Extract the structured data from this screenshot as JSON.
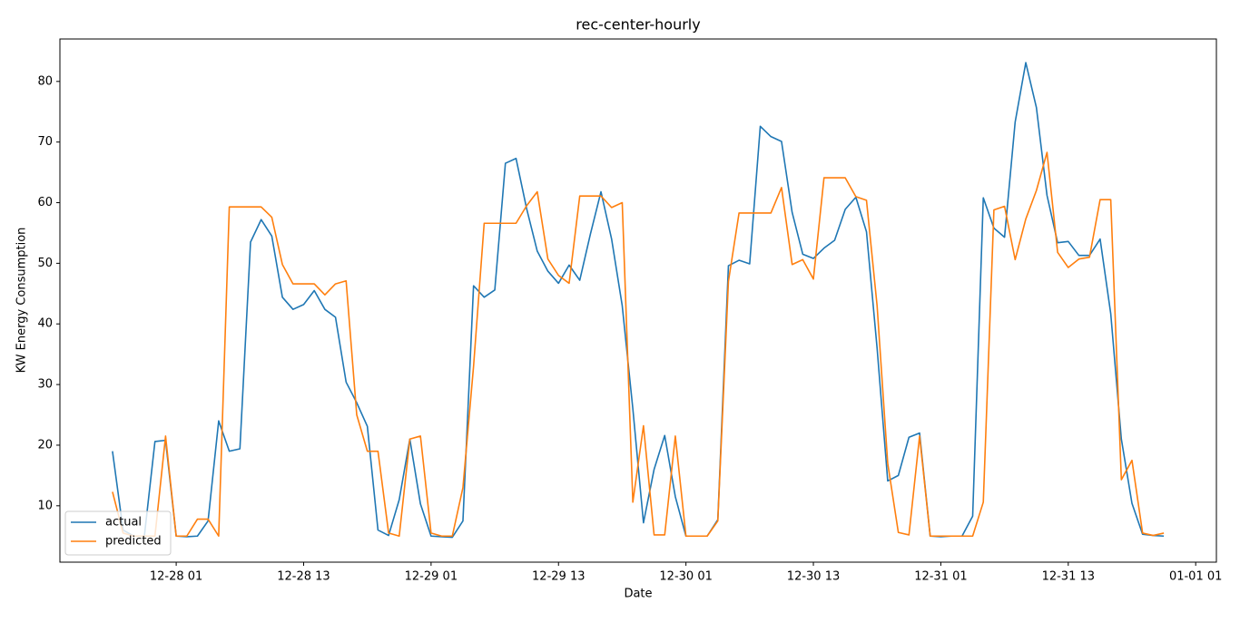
{
  "chart_data": {
    "type": "line",
    "title": "rec-center-hourly",
    "xlabel": "Date",
    "ylabel": "KW Energy Consumption",
    "x": [
      "12-27 19",
      "12-27 20",
      "12-27 21",
      "12-27 22",
      "12-27 23",
      "12-28 00",
      "12-28 01",
      "12-28 02",
      "12-28 03",
      "12-28 04",
      "12-28 05",
      "12-28 06",
      "12-28 07",
      "12-28 08",
      "12-28 09",
      "12-28 10",
      "12-28 11",
      "12-28 12",
      "12-28 13",
      "12-28 14",
      "12-28 15",
      "12-28 16",
      "12-28 17",
      "12-28 18",
      "12-28 19",
      "12-28 20",
      "12-28 21",
      "12-28 22",
      "12-28 23",
      "12-29 00",
      "12-29 01",
      "12-29 02",
      "12-29 03",
      "12-29 04",
      "12-29 05",
      "12-29 06",
      "12-29 07",
      "12-29 08",
      "12-29 09",
      "12-29 10",
      "12-29 11",
      "12-29 12",
      "12-29 13",
      "12-29 14",
      "12-29 15",
      "12-29 16",
      "12-29 17",
      "12-29 18",
      "12-29 19",
      "12-29 20",
      "12-29 21",
      "12-29 22",
      "12-29 23",
      "12-30 00",
      "12-30 01",
      "12-30 02",
      "12-30 03",
      "12-30 04",
      "12-30 05",
      "12-30 06",
      "12-30 07",
      "12-30 08",
      "12-30 09",
      "12-30 10",
      "12-30 11",
      "12-30 12",
      "12-30 13",
      "12-30 14",
      "12-30 15",
      "12-30 16",
      "12-30 17",
      "12-30 18",
      "12-30 19",
      "12-30 20",
      "12-30 21",
      "12-30 22",
      "12-30 23",
      "12-31 00",
      "12-31 01",
      "12-31 02",
      "12-31 03",
      "12-31 04",
      "12-31 05",
      "12-31 06",
      "12-31 07",
      "12-31 08",
      "12-31 09",
      "12-31 10",
      "12-31 11",
      "12-31 12",
      "12-31 13",
      "12-31 14",
      "12-31 15",
      "12-31 16",
      "12-31 17",
      "12-31 18",
      "12-31 19",
      "12-31 20",
      "12-31 21",
      "12-31 22"
    ],
    "series": [
      {
        "name": "actual",
        "color": "#1f77b4",
        "values": [
          19,
          6,
          5,
          5,
          20.6,
          20.8,
          5,
          4.9,
          5,
          7.5,
          24,
          19,
          19.4,
          53.5,
          57.2,
          54.5,
          44.4,
          42.4,
          43.2,
          45.5,
          42.4,
          41.1,
          30.4,
          27,
          23.1,
          6,
          5.1,
          11,
          21,
          10.3,
          5,
          4.9,
          4.8,
          7.5,
          46.3,
          44.4,
          45.6,
          66.5,
          67.3,
          59,
          52,
          48.7,
          46.7,
          49.7,
          47.2,
          54.8,
          61.8,
          54,
          43,
          26,
          7.2,
          16,
          21.6,
          11.5,
          5,
          5,
          5,
          7.7,
          49.6,
          50.5,
          49.9,
          72.6,
          70.9,
          70.1,
          58.4,
          51.5,
          50.8,
          52.5,
          53.8,
          58.9,
          60.9,
          55.2,
          36,
          14.1,
          15,
          21.3,
          22,
          5,
          4.9,
          5,
          5,
          8.3,
          60.8,
          55.8,
          54.3,
          73.3,
          83.1,
          75.7,
          61.2,
          53.4,
          53.6,
          51.3,
          51.3,
          54,
          41.7,
          21,
          10.4,
          5.3,
          5.1,
          5
        ]
      },
      {
        "name": "predicted",
        "color": "#ff7f0e",
        "values": [
          12.3,
          5.5,
          5,
          5,
          5,
          21.5,
          5,
          5,
          7.8,
          7.8,
          5,
          59.3,
          59.3,
          59.3,
          59.3,
          57.6,
          49.8,
          46.6,
          46.6,
          46.6,
          44.8,
          46.6,
          47.1,
          25,
          19,
          19,
          5.5,
          5,
          21,
          21.5,
          5.5,
          5,
          5,
          13,
          33,
          56.6,
          56.6,
          56.6,
          56.6,
          59.5,
          61.8,
          50.7,
          48,
          46.7,
          61.1,
          61.1,
          61.1,
          59.2,
          60,
          10.6,
          23.2,
          5.2,
          5.2,
          21.5,
          5,
          5,
          5,
          7.5,
          47,
          58.3,
          58.3,
          58.3,
          58.3,
          62.5,
          49.8,
          50.6,
          47.4,
          64.1,
          64.1,
          64.1,
          61,
          60.4,
          43,
          17,
          5.6,
          5.2,
          21.5,
          5,
          5,
          5,
          5,
          5,
          10.6,
          58.8,
          59.4,
          50.6,
          57.3,
          62,
          68.3,
          51.8,
          49.3,
          50.7,
          51,
          60.5,
          60.5,
          14.3,
          17.5,
          5.5,
          5.1,
          5.5
        ]
      }
    ],
    "xlim": [
      "12-27 14:03",
      "01-01 02:57"
    ],
    "xticks": [
      "12-28 01",
      "12-28 13",
      "12-29 01",
      "12-29 13",
      "12-30 01",
      "12-30 13",
      "12-31 01",
      "12-31 13",
      "01-01 01"
    ],
    "ylim": [
      0.7,
      87
    ],
    "yticks": [
      10,
      20,
      30,
      40,
      50,
      60,
      70,
      80
    ],
    "legend": "lower left"
  }
}
